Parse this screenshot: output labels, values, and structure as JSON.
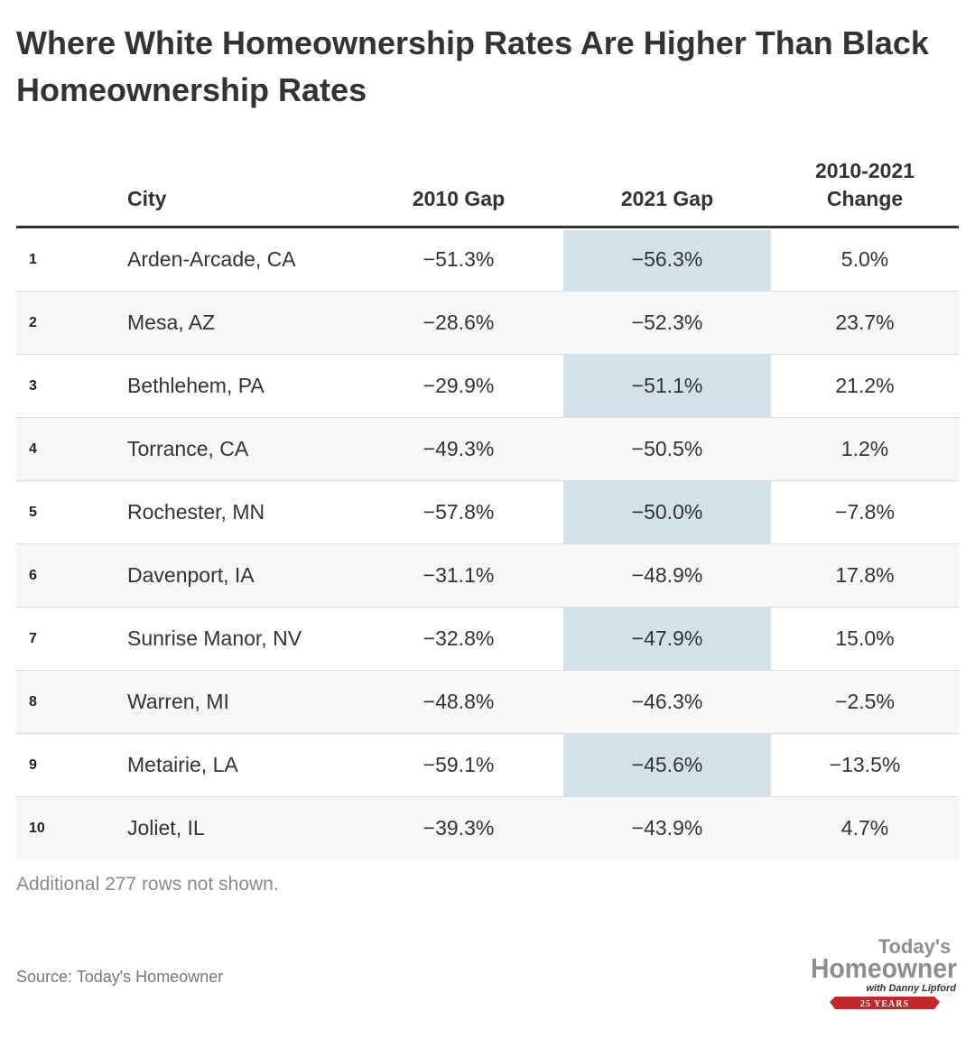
{
  "title": "Where White Homeownership Rates Are Higher Than Black Homeownership Rates",
  "chart_data": {
    "type": "table",
    "columns": [
      "",
      "City",
      "2010 Gap",
      "2021 Gap",
      "2010-2021\nChange"
    ],
    "highlighted_column": "2021 Gap",
    "highlight_color": "#d2e2e8",
    "rows": [
      {
        "rank": "1",
        "city": "Arden-Arcade, CA",
        "gap_2010": "−51.3%",
        "gap_2021": "−56.3%",
        "change": "5.0%"
      },
      {
        "rank": "2",
        "city": "Mesa, AZ",
        "gap_2010": "−28.6%",
        "gap_2021": "−52.3%",
        "change": "23.7%"
      },
      {
        "rank": "3",
        "city": "Bethlehem, PA",
        "gap_2010": "−29.9%",
        "gap_2021": "−51.1%",
        "change": "21.2%"
      },
      {
        "rank": "4",
        "city": "Torrance, CA",
        "gap_2010": "−49.3%",
        "gap_2021": "−50.5%",
        "change": "1.2%"
      },
      {
        "rank": "5",
        "city": "Rochester, MN",
        "gap_2010": "−57.8%",
        "gap_2021": "−50.0%",
        "change": "−7.8%"
      },
      {
        "rank": "6",
        "city": "Davenport, IA",
        "gap_2010": "−31.1%",
        "gap_2021": "−48.9%",
        "change": "17.8%"
      },
      {
        "rank": "7",
        "city": "Sunrise Manor, NV",
        "gap_2010": "−32.8%",
        "gap_2021": "−47.9%",
        "change": "15.0%"
      },
      {
        "rank": "8",
        "city": "Warren, MI",
        "gap_2010": "−48.8%",
        "gap_2021": "−46.3%",
        "change": "−2.5%"
      },
      {
        "rank": "9",
        "city": "Metairie, LA",
        "gap_2010": "−59.1%",
        "gap_2021": "−45.6%",
        "change": "−13.5%"
      },
      {
        "rank": "10",
        "city": "Joliet, IL",
        "gap_2010": "−39.3%",
        "gap_2021": "−43.9%",
        "change": "4.7%"
      }
    ]
  },
  "footer": {
    "note": "Additional 277 rows not shown.",
    "source": "Source: Today's Homeowner"
  },
  "logo": {
    "line1": "Today's",
    "line2": "Homeowner",
    "line3": "with Danny Lipford",
    "banner": "25 YEARS",
    "banner_color": "#c0282d"
  }
}
